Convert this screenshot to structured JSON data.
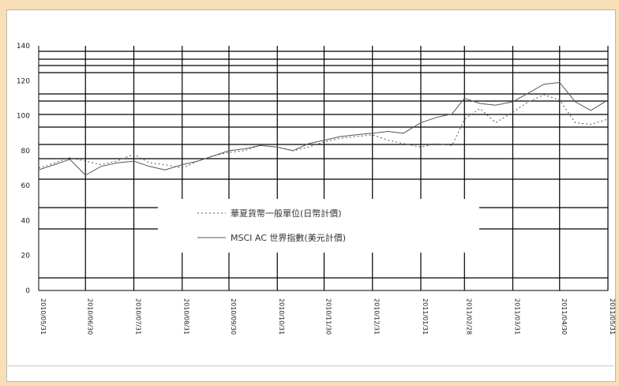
{
  "chart_data": {
    "type": "line",
    "x_ticks": [
      "2010/05/31",
      "2010/06/30",
      "2010/07/31",
      "2010/08/31",
      "2010/09/30",
      "2010/10/31",
      "2010/11/30",
      "2010/12/31",
      "2011/01/31",
      "2011/02/28",
      "2011/03/31",
      "2011/04/30",
      "2011/05/31"
    ],
    "y_ticks": [
      0,
      20,
      40,
      60,
      80,
      100,
      120,
      140
    ],
    "ylim": [
      0,
      140
    ],
    "grid": "irregular horizontal and monthly vertical lines",
    "legend_position": "center",
    "series": [
      {
        "name": "華夏貨幣一般單位(日幣計價)",
        "style": "dotted",
        "x": [
          "2010/05/31",
          "2010/06/10",
          "2010/06/20",
          "2010/06/30",
          "2010/07/10",
          "2010/07/20",
          "2010/07/31",
          "2010/08/10",
          "2010/08/20",
          "2010/08/31",
          "2010/09/10",
          "2010/09/20",
          "2010/09/30",
          "2010/10/10",
          "2010/10/20",
          "2010/10/31",
          "2010/11/10",
          "2010/11/20",
          "2010/11/30",
          "2010/12/10",
          "2010/12/20",
          "2010/12/31",
          "2011/01/10",
          "2011/01/20",
          "2011/01/31",
          "2011/02/10",
          "2011/02/20",
          "2011/02/28",
          "2011/03/10",
          "2011/03/20",
          "2011/03/31",
          "2011/04/10",
          "2011/04/20",
          "2011/04/30",
          "2011/05/10",
          "2011/05/20",
          "2011/05/31"
        ],
        "values": [
          70,
          73,
          76,
          74,
          72,
          74,
          78,
          73,
          72,
          70,
          74,
          77,
          79,
          80,
          83,
          82,
          80,
          82,
          85,
          87,
          88,
          89,
          86,
          84,
          82,
          84,
          83,
          98,
          104,
          96,
          102,
          108,
          112,
          109,
          96,
          95,
          98
        ]
      },
      {
        "name": "MSCI AC 世界指數(美元計價)",
        "style": "solid",
        "x": [
          "2010/05/31",
          "2010/06/10",
          "2010/06/20",
          "2010/06/30",
          "2010/07/10",
          "2010/07/20",
          "2010/07/31",
          "2010/08/10",
          "2010/08/20",
          "2010/08/31",
          "2010/09/10",
          "2010/09/20",
          "2010/09/30",
          "2010/10/10",
          "2010/10/20",
          "2010/10/31",
          "2010/11/10",
          "2010/11/20",
          "2010/11/30",
          "2010/12/10",
          "2010/12/20",
          "2010/12/31",
          "2011/01/10",
          "2011/01/20",
          "2011/01/31",
          "2011/02/10",
          "2011/02/20",
          "2011/02/28",
          "2011/03/10",
          "2011/03/20",
          "2011/03/31",
          "2011/04/10",
          "2011/04/20",
          "2011/04/30",
          "2011/05/10",
          "2011/05/20",
          "2011/05/31"
        ],
        "values": [
          69,
          72,
          75,
          66,
          71,
          73,
          74,
          71,
          69,
          72,
          74,
          77,
          80,
          81,
          83,
          82,
          80,
          84,
          86,
          88,
          89,
          90,
          91,
          90,
          96,
          99,
          101,
          110,
          107,
          106,
          108,
          113,
          118,
          119,
          108,
          103,
          109
        ]
      }
    ]
  },
  "colors": {
    "background": "#f9dfb6",
    "plot": "#ffffff",
    "grid": "#000000",
    "series": "#555555"
  }
}
